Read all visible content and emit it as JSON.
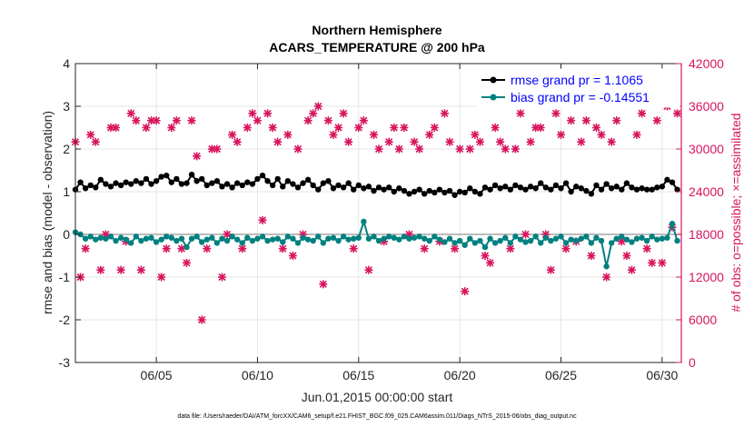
{
  "chart_data": {
    "type": "line",
    "title": [
      "Northern Hemisphere",
      "ACARS_TEMPERATURE @ 200 hPa"
    ],
    "xlabel": "Jun.01,2015 00:00:00 start",
    "ylabel_left": "rmse and bias (model - observation)",
    "ylabel_right": "# of obs: o=possible; ×=assimilated",
    "footnote": "data file: /Users/raeder/DAI/ATM_forcXX/CAM6_setup/f.e21.FHIST_BGC.f09_025.CAM6assim.011/Diags_NTrS_2015-06/obs_diag_output.nc",
    "xlim": [
      1.0,
      30.95
    ],
    "ylim_left": [
      -3,
      4
    ],
    "ylim_right": [
      0,
      42000
    ],
    "xtick_values": [
      5,
      10,
      15,
      20,
      25,
      30
    ],
    "xtick_labels": [
      "06/05",
      "06/10",
      "06/15",
      "06/20",
      "06/25",
      "06/30"
    ],
    "ytick_left_values": [
      -3,
      -2,
      -1,
      0,
      1,
      2,
      3,
      4
    ],
    "ytick_left_labels": [
      "-3",
      "-2",
      "-1",
      "0",
      "1",
      "2",
      "3",
      "4"
    ],
    "ytick_right_values": [
      0,
      6000,
      12000,
      18000,
      24000,
      30000,
      36000,
      42000
    ],
    "ytick_right_labels": [
      "0",
      "6000",
      "12000",
      "18000",
      "24000",
      "30000",
      "36000",
      "42000"
    ],
    "zero_line": 0,
    "x": [
      1.0,
      1.25,
      1.5,
      1.75,
      2.0,
      2.25,
      2.5,
      2.75,
      3.0,
      3.25,
      3.5,
      3.75,
      4.0,
      4.25,
      4.5,
      4.75,
      5.0,
      5.25,
      5.5,
      5.75,
      6.0,
      6.25,
      6.5,
      6.75,
      7.0,
      7.25,
      7.5,
      7.75,
      8.0,
      8.25,
      8.5,
      8.75,
      9.0,
      9.25,
      9.5,
      9.75,
      10.0,
      10.25,
      10.5,
      10.75,
      11.0,
      11.25,
      11.5,
      11.75,
      12.0,
      12.25,
      12.5,
      12.75,
      13.0,
      13.25,
      13.5,
      13.75,
      14.0,
      14.25,
      14.5,
      14.75,
      15.0,
      15.25,
      15.5,
      15.75,
      16.0,
      16.25,
      16.5,
      16.75,
      17.0,
      17.25,
      17.5,
      17.75,
      18.0,
      18.25,
      18.5,
      18.75,
      19.0,
      19.25,
      19.5,
      19.75,
      20.0,
      20.25,
      20.5,
      20.75,
      21.0,
      21.25,
      21.5,
      21.75,
      22.0,
      22.25,
      22.5,
      22.75,
      23.0,
      23.25,
      23.5,
      23.75,
      24.0,
      24.25,
      24.5,
      24.75,
      25.0,
      25.25,
      25.5,
      25.75,
      26.0,
      26.25,
      26.5,
      26.75,
      27.0,
      27.25,
      27.5,
      27.75,
      28.0,
      28.25,
      28.5,
      28.75,
      29.0,
      29.25,
      29.5,
      29.75,
      30.0,
      30.25,
      30.5,
      30.75
    ],
    "series": [
      {
        "name": "rmse grand pr = 1.1065",
        "color": "#000000",
        "axis": "left",
        "values": [
          1.05,
          1.22,
          1.08,
          1.15,
          1.1,
          1.28,
          1.18,
          1.12,
          1.2,
          1.15,
          1.22,
          1.18,
          1.25,
          1.2,
          1.3,
          1.18,
          1.25,
          1.35,
          1.38,
          1.22,
          1.3,
          1.18,
          1.2,
          1.4,
          1.25,
          1.3,
          1.15,
          1.2,
          1.25,
          1.12,
          1.18,
          1.1,
          1.2,
          1.15,
          1.22,
          1.18,
          1.3,
          1.38,
          1.25,
          1.15,
          1.3,
          1.12,
          1.25,
          1.18,
          1.1,
          1.2,
          1.28,
          1.15,
          1.05,
          1.2,
          1.25,
          1.08,
          1.15,
          1.1,
          1.2,
          1.05,
          1.15,
          1.08,
          1.12,
          1.02,
          1.1,
          1.05,
          1.1,
          1.0,
          1.08,
          1.02,
          0.95,
          1.0,
          1.05,
          0.95,
          1.02,
          0.98,
          1.05,
          0.98,
          1.02,
          0.92,
          1.0,
          0.98,
          1.08,
          1.0,
          0.95,
          1.1,
          1.05,
          1.15,
          1.08,
          1.12,
          1.05,
          1.15,
          1.1,
          1.05,
          1.12,
          1.08,
          1.2,
          1.1,
          1.05,
          1.15,
          1.08,
          1.2,
          1.0,
          1.12,
          1.08,
          1.02,
          0.95,
          1.15,
          1.05,
          1.18,
          1.08,
          1.12,
          1.05,
          1.2,
          1.1,
          1.05,
          1.08,
          1.05,
          1.05,
          1.1,
          1.12,
          1.28,
          1.22,
          1.05
        ]
      },
      {
        "name": "bias grand pr = -0.14551",
        "color": "#008080",
        "axis": "left",
        "values": [
          0.05,
          0.0,
          -0.1,
          -0.05,
          -0.12,
          -0.08,
          -0.1,
          -0.05,
          -0.15,
          -0.08,
          -0.12,
          -0.2,
          -0.05,
          -0.15,
          -0.1,
          -0.08,
          -0.18,
          -0.12,
          -0.05,
          -0.08,
          -0.15,
          -0.1,
          -0.3,
          -0.1,
          -0.05,
          -0.18,
          -0.12,
          -0.08,
          -0.2,
          -0.1,
          -0.15,
          -0.05,
          -0.12,
          -0.2,
          -0.08,
          -0.15,
          -0.1,
          -0.05,
          -0.15,
          -0.12,
          -0.1,
          -0.18,
          -0.05,
          -0.1,
          -0.2,
          -0.08,
          -0.12,
          -0.15,
          -0.05,
          -0.2,
          -0.1,
          -0.08,
          -0.15,
          -0.05,
          -0.12,
          -0.1,
          -0.08,
          0.3,
          -0.1,
          -0.05,
          -0.15,
          -0.1,
          -0.05,
          -0.08,
          -0.12,
          -0.05,
          -0.1,
          -0.08,
          -0.05,
          -0.1,
          -0.15,
          -0.05,
          -0.12,
          -0.18,
          -0.1,
          -0.2,
          -0.15,
          -0.25,
          -0.1,
          -0.2,
          -0.15,
          -0.3,
          -0.1,
          -0.2,
          -0.15,
          -0.08,
          -0.2,
          -0.05,
          -0.12,
          -0.18,
          -0.15,
          -0.05,
          -0.2,
          -0.08,
          -0.15,
          -0.1,
          -0.05,
          -0.2,
          -0.12,
          -0.15,
          -0.1,
          -0.05,
          -0.2,
          -0.08,
          -0.15,
          -0.75,
          -0.2,
          -0.1,
          -0.05,
          -0.12,
          -0.18,
          -0.1,
          -0.08,
          -0.15,
          -0.05,
          -0.12,
          -0.1,
          -0.08,
          0.25,
          -0.15
        ]
      },
      {
        "name": "# of obs possible",
        "color": "#d8145e",
        "axis": "right",
        "values": [
          31000,
          12000,
          16000,
          32000,
          31000,
          13000,
          18000,
          33000,
          33000,
          13000,
          17000,
          35000,
          34000,
          13000,
          33000,
          34000,
          34000,
          12000,
          16000,
          33000,
          34000,
          16000,
          14000,
          34000,
          29000,
          6000,
          16000,
          30000,
          30000,
          12000,
          18000,
          32000,
          31000,
          16000,
          33000,
          35000,
          34000,
          20000,
          35000,
          33000,
          31000,
          16000,
          32000,
          15000,
          30000,
          18000,
          34000,
          35000,
          36000,
          11000,
          34000,
          32000,
          33000,
          35000,
          31000,
          16000,
          33000,
          34000,
          13000,
          32000,
          30000,
          17000,
          31000,
          33000,
          30000,
          33000,
          18000,
          31000,
          30000,
          16000,
          32000,
          33000,
          17000,
          35000,
          31000,
          16000,
          30000,
          10000,
          30000,
          32000,
          31000,
          15000,
          14000,
          33000,
          31000,
          30000,
          16000,
          30000,
          35000,
          18000,
          31000,
          33000,
          33000,
          18000,
          13000,
          35000,
          32000,
          16000,
          34000,
          17000,
          31000,
          34000,
          15000,
          33000,
          32000,
          12000,
          31000,
          34000,
          17000,
          15000,
          13000,
          32000,
          35000,
          16000,
          14000,
          34000,
          14000,
          36000,
          19000,
          35000
        ]
      }
    ],
    "legend": [
      {
        "label": "rmse grand pr = 1.1065",
        "color": "#000000",
        "text_color": "#0000ff",
        "marker": "circle"
      },
      {
        "label": "bias grand pr = -0.14551",
        "color": "#008080",
        "text_color": "#0000ff",
        "marker": "circle"
      }
    ],
    "legend_position": "top-right"
  }
}
